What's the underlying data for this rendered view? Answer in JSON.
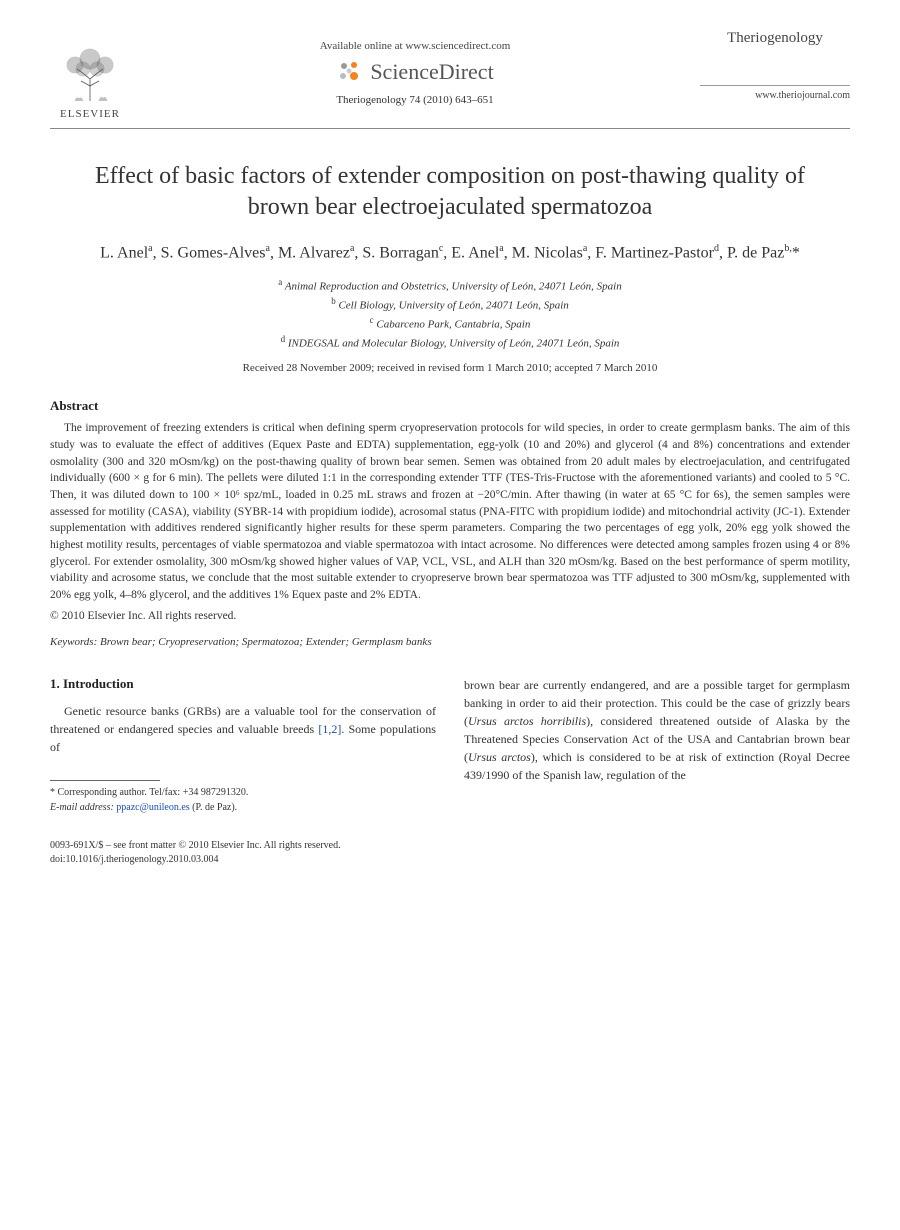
{
  "header": {
    "available_online": "Available online at www.sciencedirect.com",
    "sciencedirect": "ScienceDirect",
    "citation": "Theriogenology 74 (2010) 643–651",
    "elsevier_label": "ELSEVIER",
    "journal_name": "Theriogenology",
    "journal_url": "www.theriojournal.com"
  },
  "article": {
    "title": "Effect of basic factors of extender composition on post-thawing quality of brown bear electroejaculated spermatozoa",
    "authors_html": "L. Anel<sup>a</sup>, S. Gomes-Alves<sup>a</sup>, M. Alvarez<sup>a</sup>, S. Borragan<sup>c</sup>, E. Anel<sup>a</sup>, M. Nicolas<sup>a</sup>, F. Martinez-Pastor<sup>d</sup>, P. de Paz<sup>b,</sup>*",
    "affiliations": [
      "<sup>a</sup> Animal Reproduction and Obstetrics, University of León, 24071 León, Spain",
      "<sup>b</sup> Cell Biology, University of León, 24071 León, Spain",
      "<sup>c</sup> Cabarceno Park, Cantabria, Spain",
      "<sup>d</sup> INDEGSAL and Molecular Biology, University of León, 24071 León, Spain"
    ],
    "dates": "Received 28 November 2009; received in revised form 1 March 2010; accepted 7 March 2010"
  },
  "abstract": {
    "heading": "Abstract",
    "text": "The improvement of freezing extenders is critical when defining sperm cryopreservation protocols for wild species, in order to create germplasm banks. The aim of this study was to evaluate the effect of additives (Equex Paste and EDTA) supplementation, egg-yolk (10 and 20%) and glycerol (4 and 8%) concentrations and extender osmolality (300 and 320 mOsm/kg) on the post-thawing quality of brown bear semen. Semen was obtained from 20 adult males by electroejaculation, and centrifugated individually (600 × g for 6 min). The pellets were diluted 1:1 in the corresponding extender TTF (TES-Tris-Fructose with the aforementioned variants) and cooled to 5 °C. Then, it was diluted down to 100 × 10⁶ spz/mL, loaded in 0.25 mL straws and frozen at −20°C/min. After thawing (in water at 65 °C for 6s), the semen samples were assessed for motility (CASA), viability (SYBR-14 with propidium iodide), acrosomal status (PNA-FITC with propidium iodide) and mitochondrial activity (JC-1). Extender supplementation with additives rendered significantly higher results for these sperm parameters. Comparing the two percentages of egg yolk, 20% egg yolk showed the highest motility results, percentages of viable spermatozoa and viable spermatozoa with intact acrosome. No differences were detected among samples frozen using 4 or 8% glycerol. For extender osmolality, 300 mOsm/kg showed higher values of VAP, VCL, VSL, and ALH than 320 mOsm/kg. Based on the best performance of sperm motility, viability and acrosome status, we conclude that the most suitable extender to cryopreserve brown bear spermatozoa was TTF adjusted to 300 mOsm/kg, supplemented with 20% egg yolk, 4–8% glycerol, and the additives 1% Equex paste and 2% EDTA.",
    "copyright": "© 2010 Elsevier Inc. All rights reserved."
  },
  "keywords": {
    "label": "Keywords:",
    "text": "Brown bear; Cryopreservation; Spermatozoa; Extender; Germplasm banks"
  },
  "introduction": {
    "heading": "1. Introduction",
    "col1": "Genetic resource banks (GRBs) are a valuable tool for the conservation of threatened or endangered species and valuable breeds <span class='ref-link'>[1,2]</span>. Some populations of",
    "col2": "brown bear are currently endangered, and are a possible target for germplasm banking in order to aid their protection. This could be the case of grizzly bears (<span class='italic'>Ursus arctos horribilis</span>), considered threatened outside of Alaska by the Threatened Species Conservation Act of the USA and Cantabrian brown bear (<span class='italic'>Ursus arctos</span>), which is considered to be at risk of extinction (Royal Decree 439/1990 of the Spanish law, regulation of the"
  },
  "footnote": {
    "corresponding": "* Corresponding author. Tel/fax: +34 987291320.",
    "email_label": "E-mail address:",
    "email": "ppazc@unileon.es",
    "email_name": "(P. de Paz)."
  },
  "footer": {
    "line1": "0093-691X/$ – see front matter © 2010 Elsevier Inc. All rights reserved.",
    "line2": "doi:10.1016/j.theriogenology.2010.03.004"
  },
  "colors": {
    "text": "#333333",
    "link": "#1a4db3",
    "divider": "#888888",
    "sd_orange": "#f5821f",
    "sd_gray": "#999999"
  }
}
